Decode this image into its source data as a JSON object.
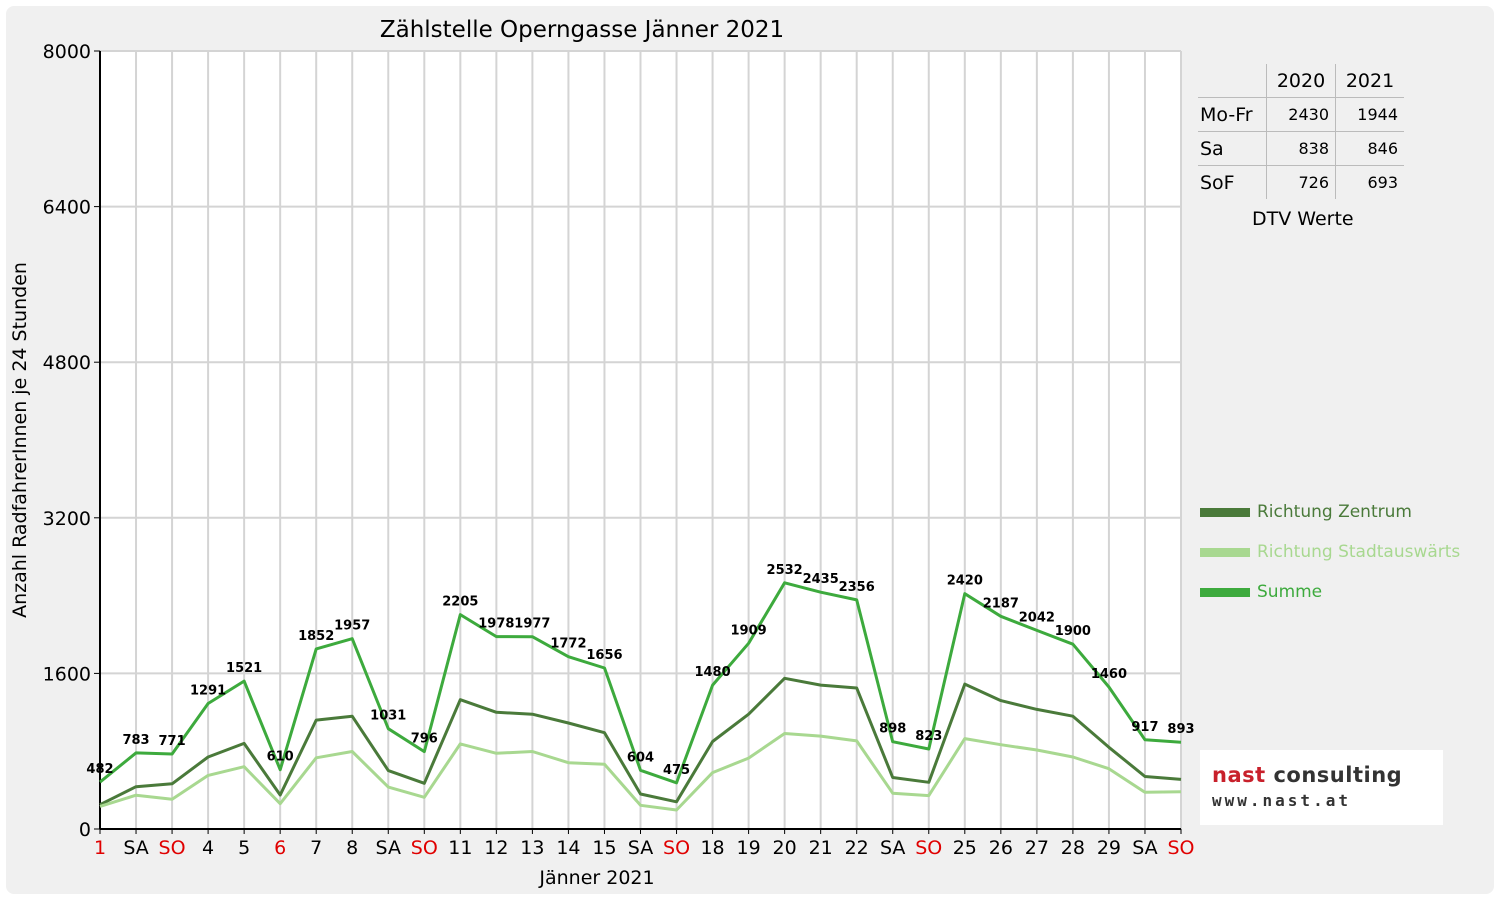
{
  "chart_data": {
    "type": "line",
    "title": "Zählstelle Operngasse Jänner 2021",
    "xlabel": "Jänner 2021",
    "ylabel": "Anzahl RadfahrerInnen je 24 Stunden",
    "ylim": [
      0,
      8000
    ],
    "yticks": [
      0,
      1600,
      3200,
      4800,
      6400,
      8000
    ],
    "grid": true,
    "legend_position": "right",
    "categories": [
      "1",
      "SA",
      "SO",
      "4",
      "5",
      "6",
      "7",
      "8",
      "SA",
      "SO",
      "11",
      "12",
      "13",
      "14",
      "15",
      "SA",
      "SO",
      "18",
      "19",
      "20",
      "21",
      "22",
      "SA",
      "SO",
      "25",
      "26",
      "27",
      "28",
      "29",
      "SA",
      "SO"
    ],
    "red_categories": [
      0,
      2,
      5,
      9,
      16,
      23,
      30
    ],
    "series": [
      {
        "name": "Richtung Zentrum",
        "color": "#4a7a3a",
        "values": [
          250,
          435,
          465,
          740,
          880,
          350,
          1120,
          1160,
          600,
          470,
          1330,
          1200,
          1180,
          1090,
          990,
          360,
          280,
          900,
          1180,
          1550,
          1480,
          1450,
          530,
          480,
          1490,
          1320,
          1230,
          1160,
          840,
          540,
          510
        ]
      },
      {
        "name": "Richtung Stadtauswärts",
        "color": "#a8d890",
        "values": [
          232,
          348,
          306,
          551,
          641,
          260,
          732,
          797,
          431,
          326,
          875,
          778,
          797,
          682,
          666,
          244,
          195,
          580,
          729,
          982,
          955,
          906,
          368,
          343,
          930,
          867,
          812,
          740,
          620,
          377,
          383
        ]
      },
      {
        "name": "Summe",
        "color": "#3daa3d",
        "values": [
          482,
          783,
          771,
          1291,
          1521,
          610,
          1852,
          1957,
          1031,
          796,
          2205,
          1978,
          1977,
          1772,
          1656,
          604,
          475,
          1480,
          1909,
          2532,
          2435,
          2356,
          898,
          823,
          2420,
          2187,
          2042,
          1900,
          1460,
          917,
          893
        ]
      }
    ]
  },
  "dtv_table": {
    "columns": [
      "2020",
      "2021"
    ],
    "rows": [
      {
        "label": "Mo-Fr",
        "v2020": "2430",
        "v2021": "1944"
      },
      {
        "label": "Sa",
        "v2020": "838",
        "v2021": "846"
      },
      {
        "label": "SoF",
        "v2020": "726",
        "v2021": "693"
      }
    ],
    "caption": "DTV Werte"
  },
  "logo": {
    "name_part1": "nast",
    "name_part2": "consulting",
    "url": "www.nast.at"
  }
}
